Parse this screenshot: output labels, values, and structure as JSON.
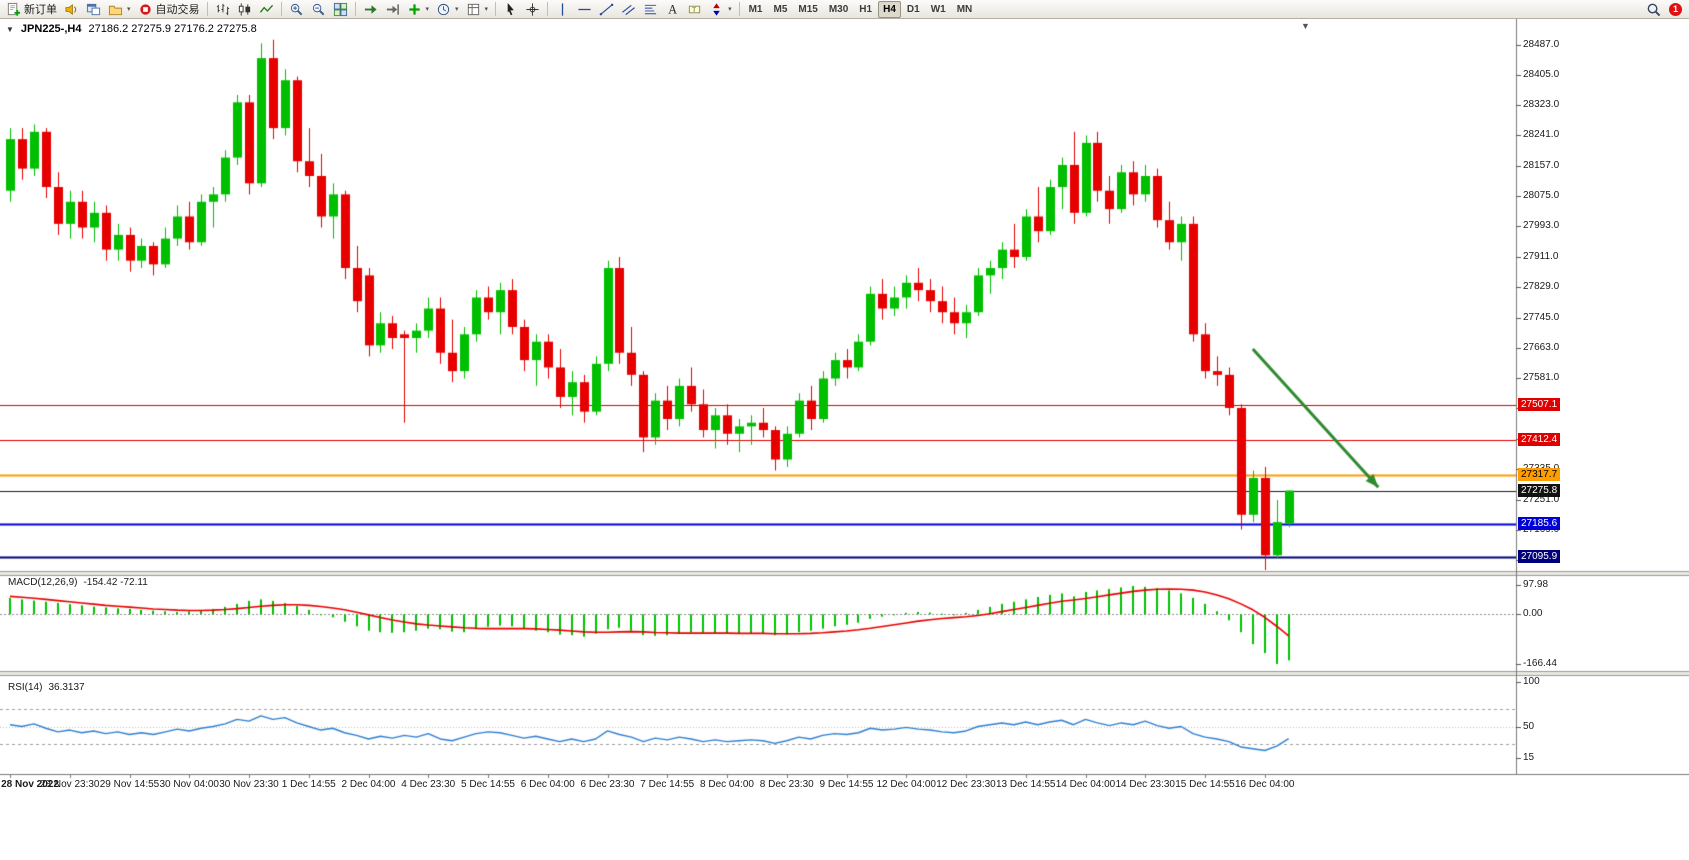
{
  "toolbar": {
    "new_order": "新订单",
    "auto_trading": "自动交易",
    "timeframes": [
      "M1",
      "M5",
      "M15",
      "M30",
      "H1",
      "H4",
      "D1",
      "W1",
      "MN"
    ],
    "active_timeframe": "H4",
    "notification_count": "1",
    "icons": [
      "new-order",
      "alerts",
      "new-chart",
      "profiles",
      "auto-trading",
      "bar-chart",
      "candlestick-chart",
      "line-chart",
      "zoom-in",
      "zoom-out",
      "tile-windows",
      "auto-scroll",
      "chart-shift",
      "indicators",
      "periods",
      "templates",
      "cursor",
      "crosshair",
      "vertical-line",
      "horizontal-line",
      "trendline",
      "channel",
      "fibonacci",
      "text",
      "label",
      "arrows",
      "search",
      "notification"
    ]
  },
  "chart": {
    "symbol_period": "JPN225-,H4",
    "ohlc": "27186.2 27275.9 27176.2 27275.8",
    "shift_marker": "▼",
    "collapse_marker": "▼",
    "colors": {
      "up": "#00bf00",
      "down": "#e60000",
      "macd_hist": "#00c000",
      "macd_signal": "#e80000",
      "rsi_line": "#2f7fd0",
      "axis_line": "#7a7a7a",
      "arrow": "#2e8b2e"
    },
    "levels": [
      {
        "value": 27507.1,
        "color": "#e00000",
        "width": 1
      },
      {
        "value": 27412.4,
        "color": "#e00000",
        "width": 1
      },
      {
        "value": 27317.7,
        "color": "#ff9c00",
        "width": 2
      },
      {
        "value": 27275.8,
        "color": "#1a1a1a",
        "width": 1
      },
      {
        "value": 27185.6,
        "color": "#0000d8",
        "width": 2
      },
      {
        "value": 27095.9,
        "color": "#00007a",
        "width": 2
      }
    ],
    "price_axis": {
      "ticks": [
        "28487.0",
        "28405.0",
        "28323.0",
        "28241.0",
        "28157.0",
        "28075.0",
        "27993.0",
        "27911.0",
        "27829.0",
        "27745.0",
        "27663.0",
        "27581.0",
        "27499.0",
        "27417.0",
        "27335.0",
        "27251.0",
        "27169.0",
        "27087.0"
      ],
      "tags": [
        {
          "text": "27507.1",
          "v": 27507.1,
          "bg": "#e00000",
          "fg": "#ffffff"
        },
        {
          "text": "27412.4",
          "v": 27412.4,
          "bg": "#e00000",
          "fg": "#ffffff"
        },
        {
          "text": "27317.7",
          "v": 27317.7,
          "bg": "#ff9c00",
          "fg": "#000000"
        },
        {
          "text": "27275.8",
          "v": 27275.8,
          "bg": "#111111",
          "fg": "#ffffff"
        },
        {
          "text": "27185.6",
          "v": 27185.6,
          "bg": "#0000d8",
          "fg": "#ffffff"
        },
        {
          "text": "27095.9",
          "v": 27095.9,
          "bg": "#00007a",
          "fg": "#ffffff"
        }
      ]
    },
    "arrow": {
      "i1": 104,
      "p1": 27660,
      "i2": 114.5,
      "p2": 27285
    }
  },
  "chart_data": {
    "type": "candlestick",
    "symbol": "JPN225-",
    "timeframe": "H4",
    "y_range": [
      27060,
      28540
    ],
    "x_axis_labels": [
      "28 Nov 2022",
      "28 Nov 23:30",
      "29 Nov 14:55",
      "30 Nov 04:00",
      "30 Nov 23:30",
      "1 Dec 14:55",
      "2 Dec 04:00",
      "4 Dec 23:30",
      "5 Dec 14:55",
      "6 Dec 04:00",
      "6 Dec 23:30",
      "7 Dec 14:55",
      "8 Dec 04:00",
      "8 Dec 23:30",
      "9 Dec 14:55",
      "12 Dec 04:00",
      "12 Dec 23:30",
      "13 Dec 14:55",
      "14 Dec 04:00",
      "14 Dec 23:30",
      "15 Dec 14:55",
      "16 Dec 04:00"
    ],
    "candles": [
      [
        28090,
        28260,
        28060,
        28230
      ],
      [
        28230,
        28260,
        28120,
        28150
      ],
      [
        28150,
        28270,
        28130,
        28250
      ],
      [
        28250,
        28260,
        28070,
        28100
      ],
      [
        28100,
        28140,
        27970,
        28000
      ],
      [
        28000,
        28090,
        27960,
        28060
      ],
      [
        28060,
        28090,
        27960,
        27990
      ],
      [
        27990,
        28060,
        27950,
        28030
      ],
      [
        28030,
        28050,
        27900,
        27930
      ],
      [
        27930,
        28000,
        27900,
        27970
      ],
      [
        27970,
        27990,
        27870,
        27900
      ],
      [
        27900,
        27960,
        27880,
        27940
      ],
      [
        27940,
        27950,
        27860,
        27890
      ],
      [
        27890,
        27990,
        27880,
        27960
      ],
      [
        27960,
        28050,
        27940,
        28020
      ],
      [
        28020,
        28060,
        27930,
        27950
      ],
      [
        27950,
        28080,
        27940,
        28060
      ],
      [
        28060,
        28100,
        27990,
        28080
      ],
      [
        28080,
        28200,
        28060,
        28180
      ],
      [
        28180,
        28350,
        28160,
        28330
      ],
      [
        28330,
        28350,
        28080,
        28110
      ],
      [
        28110,
        28490,
        28100,
        28450
      ],
      [
        28450,
        28500,
        28230,
        28260
      ],
      [
        28260,
        28420,
        28240,
        28390
      ],
      [
        28390,
        28400,
        28140,
        28170
      ],
      [
        28170,
        28260,
        28100,
        28130
      ],
      [
        28130,
        28190,
        27990,
        28020
      ],
      [
        28020,
        28110,
        27960,
        28080
      ],
      [
        28080,
        28090,
        27850,
        27880
      ],
      [
        27880,
        27940,
        27760,
        27790
      ],
      [
        27860,
        27880,
        27640,
        27670
      ],
      [
        27670,
        27760,
        27650,
        27730
      ],
      [
        27730,
        27750,
        27660,
        27690
      ],
      [
        27700,
        27710,
        27460,
        27690
      ],
      [
        27690,
        27730,
        27650,
        27710
      ],
      [
        27710,
        27800,
        27690,
        27770
      ],
      [
        27770,
        27800,
        27620,
        27650
      ],
      [
        27650,
        27740,
        27570,
        27600
      ],
      [
        27600,
        27720,
        27580,
        27700
      ],
      [
        27700,
        27820,
        27680,
        27800
      ],
      [
        27800,
        27830,
        27740,
        27760
      ],
      [
        27760,
        27840,
        27700,
        27820
      ],
      [
        27820,
        27850,
        27700,
        27720
      ],
      [
        27720,
        27740,
        27600,
        27630
      ],
      [
        27630,
        27700,
        27560,
        27680
      ],
      [
        27680,
        27700,
        27580,
        27610
      ],
      [
        27610,
        27660,
        27500,
        27530
      ],
      [
        27530,
        27600,
        27480,
        27570
      ],
      [
        27570,
        27590,
        27460,
        27490
      ],
      [
        27490,
        27640,
        27480,
        27620
      ],
      [
        27620,
        27900,
        27600,
        27880
      ],
      [
        27880,
        27910,
        27620,
        27650
      ],
      [
        27650,
        27720,
        27560,
        27590
      ],
      [
        27590,
        27600,
        27380,
        27420
      ],
      [
        27420,
        27540,
        27400,
        27520
      ],
      [
        27520,
        27560,
        27440,
        27470
      ],
      [
        27470,
        27580,
        27450,
        27560
      ],
      [
        27560,
        27610,
        27490,
        27510
      ],
      [
        27510,
        27550,
        27420,
        27440
      ],
      [
        27440,
        27500,
        27390,
        27480
      ],
      [
        27480,
        27510,
        27400,
        27430
      ],
      [
        27430,
        27470,
        27380,
        27450
      ],
      [
        27450,
        27480,
        27400,
        27460
      ],
      [
        27460,
        27500,
        27420,
        27440
      ],
      [
        27440,
        27450,
        27330,
        27360
      ],
      [
        27360,
        27450,
        27340,
        27430
      ],
      [
        27430,
        27540,
        27420,
        27520
      ],
      [
        27520,
        27560,
        27440,
        27470
      ],
      [
        27470,
        27600,
        27460,
        27580
      ],
      [
        27580,
        27650,
        27560,
        27630
      ],
      [
        27630,
        27660,
        27580,
        27610
      ],
      [
        27610,
        27700,
        27600,
        27680
      ],
      [
        27680,
        27830,
        27670,
        27810
      ],
      [
        27810,
        27850,
        27740,
        27770
      ],
      [
        27770,
        27830,
        27750,
        27800
      ],
      [
        27800,
        27860,
        27770,
        27840
      ],
      [
        27840,
        27880,
        27790,
        27820
      ],
      [
        27820,
        27850,
        27760,
        27790
      ],
      [
        27790,
        27830,
        27730,
        27760
      ],
      [
        27760,
        27800,
        27700,
        27730
      ],
      [
        27730,
        27780,
        27690,
        27760
      ],
      [
        27760,
        27880,
        27750,
        27860
      ],
      [
        27860,
        27900,
        27810,
        27880
      ],
      [
        27880,
        27950,
        27850,
        27930
      ],
      [
        27930,
        28000,
        27880,
        27910
      ],
      [
        27910,
        28040,
        27900,
        28020
      ],
      [
        28020,
        28100,
        27950,
        27980
      ],
      [
        27980,
        28120,
        27970,
        28100
      ],
      [
        28100,
        28180,
        28040,
        28160
      ],
      [
        28160,
        28250,
        28000,
        28030
      ],
      [
        28030,
        28240,
        28020,
        28220
      ],
      [
        28220,
        28250,
        28060,
        28090
      ],
      [
        28090,
        28130,
        28000,
        28040
      ],
      [
        28040,
        28160,
        28030,
        28140
      ],
      [
        28140,
        28170,
        28050,
        28080
      ],
      [
        28080,
        28160,
        28060,
        28130
      ],
      [
        28130,
        28150,
        27990,
        28010
      ],
      [
        28010,
        28060,
        27930,
        27950
      ],
      [
        27950,
        28020,
        27900,
        28000
      ],
      [
        28000,
        28020,
        27680,
        27700
      ],
      [
        27700,
        27730,
        27580,
        27600
      ],
      [
        27600,
        27640,
        27560,
        27590
      ],
      [
        27590,
        27610,
        27480,
        27500
      ],
      [
        27500,
        27510,
        27170,
        27210
      ],
      [
        27210,
        27330,
        27190,
        27310
      ],
      [
        27310,
        27340,
        27060,
        27100
      ],
      [
        27100,
        27250,
        27090,
        27190
      ],
      [
        27186.2,
        27275.9,
        27176.2,
        27275.8
      ]
    ],
    "macd": {
      "label": "MACD(12,26,9)",
      "values_text": "-154.42 -72.11",
      "range": [
        -180,
        115
      ],
      "axis": [
        {
          "text": "97.98",
          "v": 97.98
        },
        {
          "text": "0.00",
          "v": 0
        },
        {
          "text": "-166.44",
          "v": -166.44
        }
      ],
      "hist": [
        55,
        50,
        46,
        42,
        38,
        34,
        30,
        26,
        23,
        20,
        18,
        15,
        12,
        10,
        8,
        10,
        14,
        18,
        25,
        35,
        45,
        50,
        45,
        38,
        28,
        15,
        0,
        -10,
        -25,
        -40,
        -55,
        -60,
        -62,
        -60,
        -55,
        -48,
        -50,
        -58,
        -60,
        -50,
        -42,
        -38,
        -40,
        -48,
        -55,
        -60,
        -68,
        -70,
        -75,
        -65,
        -50,
        -45,
        -55,
        -70,
        -72,
        -70,
        -65,
        -60,
        -62,
        -64,
        -65,
        -66,
        -64,
        -65,
        -70,
        -68,
        -60,
        -55,
        -48,
        -40,
        -35,
        -28,
        -15,
        -8,
        -2,
        5,
        8,
        6,
        2,
        0,
        5,
        15,
        25,
        35,
        42,
        50,
        58,
        65,
        70,
        60,
        75,
        80,
        85,
        90,
        95,
        92,
        88,
        80,
        70,
        55,
        35,
        10,
        -20,
        -60,
        -100,
        -130,
        -166.44,
        -154.42
      ],
      "signal": [
        60,
        57,
        54,
        50,
        46,
        42,
        38,
        34,
        30,
        27,
        24,
        21,
        18,
        16,
        14,
        13,
        13,
        14,
        16,
        19,
        23,
        27,
        30,
        32,
        32,
        30,
        26,
        21,
        15,
        7,
        -2,
        -11,
        -19,
        -26,
        -32,
        -36,
        -39,
        -42,
        -45,
        -47,
        -48,
        -48,
        -48,
        -48,
        -49,
        -51,
        -53,
        -56,
        -59,
        -60,
        -60,
        -59,
        -58,
        -59,
        -61,
        -62,
        -63,
        -63,
        -63,
        -63,
        -63,
        -64,
        -64,
        -64,
        -65,
        -65,
        -65,
        -64,
        -62,
        -59,
        -56,
        -52,
        -47,
        -41,
        -35,
        -29,
        -23,
        -18,
        -14,
        -11,
        -8,
        -4,
        2,
        9,
        16,
        23,
        30,
        37,
        44,
        48,
        53,
        59,
        65,
        71,
        77,
        81,
        84,
        85,
        84,
        81,
        75,
        65,
        52,
        35,
        15,
        -10,
        -40,
        -72.11
      ]
    },
    "rsi": {
      "label": "RSI(14)",
      "value_text": "36.3137",
      "range": [
        0,
        100
      ],
      "levels": [
        70,
        50,
        30
      ],
      "axis": [
        {
          "text": "100",
          "v": 100
        },
        {
          "text": "50",
          "v": 50
        },
        {
          "text": "15",
          "v": 15
        }
      ],
      "series": [
        52,
        50,
        53,
        48,
        44,
        46,
        43,
        45,
        42,
        44,
        41,
        43,
        41,
        44,
        47,
        45,
        48,
        50,
        53,
        58,
        56,
        62,
        58,
        60,
        54,
        50,
        46,
        48,
        43,
        40,
        36,
        39,
        37,
        40,
        38,
        42,
        36,
        34,
        38,
        42,
        44,
        43,
        40,
        37,
        39,
        36,
        33,
        36,
        33,
        36,
        45,
        41,
        38,
        33,
        37,
        35,
        38,
        36,
        33,
        35,
        33,
        34,
        35,
        34,
        31,
        34,
        38,
        36,
        40,
        42,
        41,
        43,
        48,
        46,
        47,
        49,
        47,
        46,
        44,
        43,
        45,
        50,
        52,
        54,
        52,
        55,
        52,
        55,
        57,
        52,
        58,
        54,
        51,
        54,
        52,
        56,
        51,
        48,
        50,
        42,
        38,
        36,
        33,
        27,
        25,
        23,
        28,
        36.31
      ]
    }
  }
}
